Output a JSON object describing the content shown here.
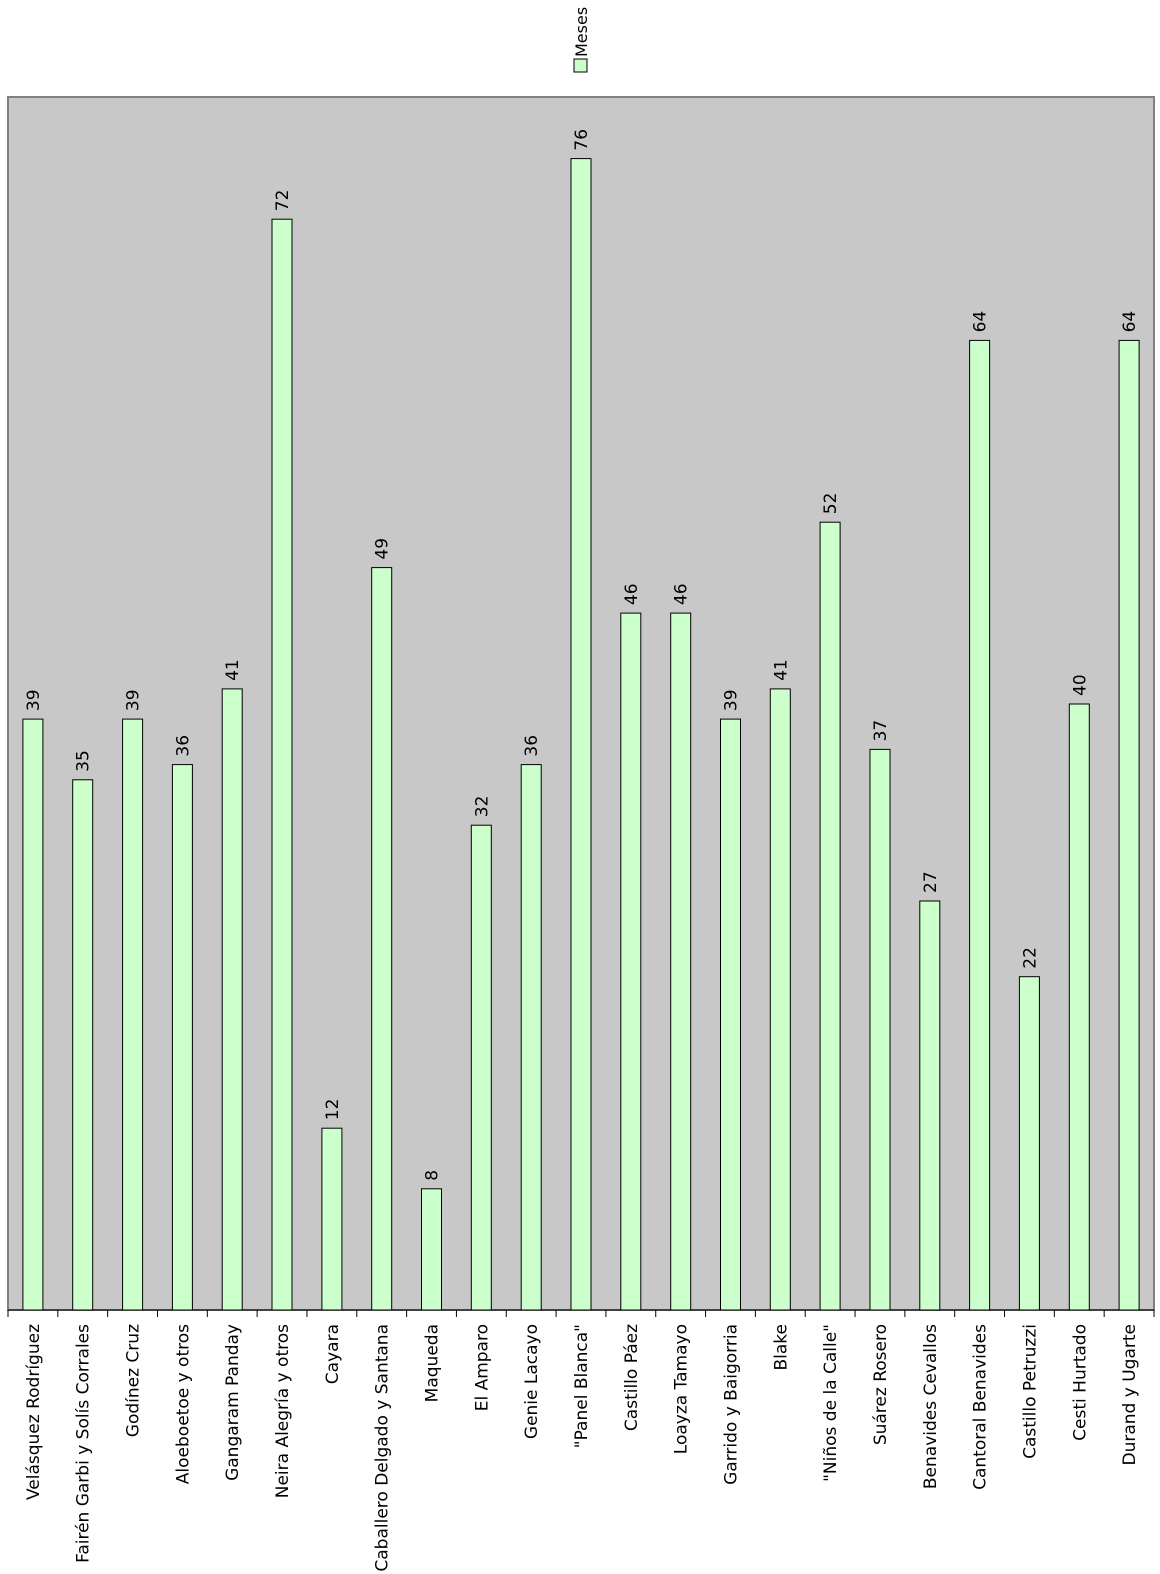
{
  "chart_data": {
    "type": "bar",
    "categories": [
      "Velásquez Rodríguez",
      "Fairén Garbi y Solís Corrales",
      "Godínez Cruz",
      "Aloeboetoe y otros",
      "Gangaram Panday",
      "Neira Alegría y otros",
      "Cayara",
      "Caballero Delgado y Santana",
      "Maqueda",
      "El Amparo",
      "Genie Lacayo",
      "\"Panel Blanca\"",
      "Castillo Páez",
      "Loayza Tamayo",
      "Garrido y Baigorria",
      "Blake",
      "\"Niños de la Calle\"",
      "Suárez Rosero",
      "Benavides Cevallos",
      "Cantoral Benavides",
      "Castillo Petruzzi",
      "Cesti Hurtado",
      "Durand y Ugarte"
    ],
    "series": [
      {
        "name": "Meses",
        "values": [
          39,
          35,
          39,
          36,
          41,
          72,
          12,
          49,
          8,
          32,
          36,
          76,
          46,
          46,
          39,
          41,
          52,
          37,
          27,
          64,
          22,
          40,
          64
        ]
      }
    ],
    "data_labels": [
      "39",
      "35",
      "39",
      "36",
      "41",
      "72",
      "12",
      "49",
      "8",
      "32",
      "36",
      "76",
      "46",
      "46",
      "39",
      "41",
      "52",
      "37",
      "27",
      "64",
      "22",
      "40",
      "64"
    ],
    "ylim": [
      0,
      80
    ],
    "grid": false,
    "legend_position": "top-right",
    "colors": {
      "bar_fill": "#ccffcc",
      "bar_stroke": "#000000",
      "plot_background": "#c8c8c8",
      "plot_border": "#808080",
      "axis": "#000000"
    }
  }
}
